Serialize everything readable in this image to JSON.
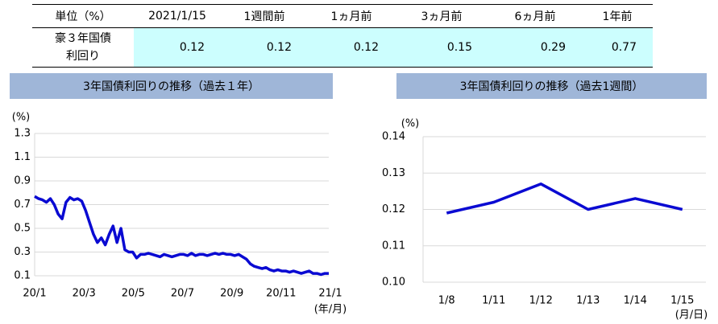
{
  "table": {
    "header": [
      "単位（%）",
      "2021/1/15",
      "1週間前",
      "1ヵ月前",
      "3ヵ月前",
      "6ヵ月前",
      "1年前"
    ],
    "row_label": [
      "豪３年国債",
      "利回り"
    ],
    "values": [
      0.12,
      0.12,
      0.12,
      0.15,
      0.29,
      0.77
    ]
  },
  "chart_data": [
    {
      "type": "line",
      "title": "3年国債利回りの推移（過去１年）",
      "y_unit": "(%)",
      "x_unit": "(年/月)",
      "x_labels": [
        "20/1",
        "20/3",
        "20/5",
        "20/7",
        "20/9",
        "20/11",
        "21/1"
      ],
      "series": [
        {
          "color": "#0a0ad2",
          "values": [
            0.77,
            0.75,
            0.74,
            0.72,
            0.75,
            0.7,
            0.62,
            0.58,
            0.72,
            0.76,
            0.74,
            0.75,
            0.73,
            0.65,
            0.55,
            0.45,
            0.38,
            0.42,
            0.36,
            0.45,
            0.52,
            0.38,
            0.5,
            0.32,
            0.3,
            0.3,
            0.25,
            0.28,
            0.28,
            0.29,
            0.28,
            0.27,
            0.26,
            0.28,
            0.27,
            0.26,
            0.27,
            0.28,
            0.28,
            0.27,
            0.29,
            0.27,
            0.28,
            0.28,
            0.27,
            0.28,
            0.29,
            0.28,
            0.29,
            0.28,
            0.28,
            0.27,
            0.28,
            0.26,
            0.24,
            0.2,
            0.18,
            0.17,
            0.16,
            0.17,
            0.15,
            0.14,
            0.15,
            0.14,
            0.14,
            0.13,
            0.14,
            0.13,
            0.12,
            0.13,
            0.14,
            0.12,
            0.12,
            0.11,
            0.12,
            0.12
          ]
        }
      ],
      "ylim": [
        0.1,
        1.3
      ],
      "yticks": [
        0.1,
        0.3,
        0.5,
        0.7,
        0.9,
        1.1,
        1.3
      ],
      "grid": true
    },
    {
      "type": "line",
      "title": "3年国債利回りの推移（過去1週間）",
      "y_unit": "(%)",
      "x_unit": "(月/日)",
      "categories": [
        "1/8",
        "1/11",
        "1/12",
        "1/13",
        "1/14",
        "1/15"
      ],
      "series": [
        {
          "color": "#0a0ad2",
          "values": [
            0.119,
            0.122,
            0.127,
            0.12,
            0.123,
            0.12
          ]
        }
      ],
      "ylim": [
        0.1,
        0.14
      ],
      "yticks": [
        {
          "value": 0.1,
          "label": "0.10"
        },
        0.11,
        0.12,
        0.13,
        0.14
      ],
      "grid": true
    }
  ]
}
